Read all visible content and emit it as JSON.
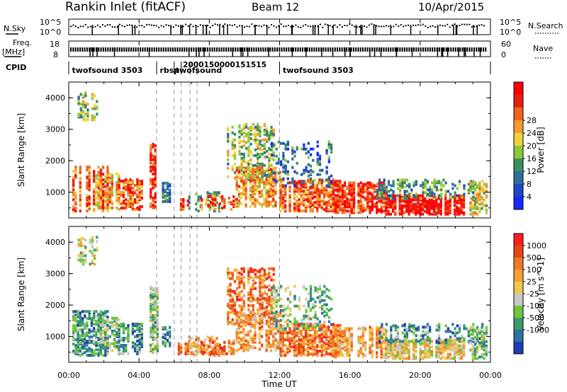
{
  "header": {
    "station": "Rankin Inlet (fitACF)",
    "beam": "Beam 12",
    "date": "10/Apr/2015"
  },
  "strip_labels": {
    "nsky": "N.Sky",
    "nsky_ticks": [
      "10^5",
      "10^0"
    ],
    "nsearch": "N.Search",
    "nsearch_ticks": [
      "10^5",
      "10^0"
    ],
    "freq": "Freq.",
    "freq_unit": "[MHz]",
    "freq_ticks": [
      "18",
      "8"
    ],
    "nave": "Nave",
    "nave_ticks": [
      "60",
      "0"
    ],
    "cpid": "CPID"
  },
  "cpid_labels": [
    {
      "text": "twofsound 3503",
      "t": 0.1
    },
    {
      "text": "rbsp",
      "t": 5.1
    },
    {
      "text": "twofsound",
      "t": 6.0
    },
    {
      "text": "twofsound 3503",
      "t": 12.1
    }
  ],
  "cpid_overlap_text": "2000150000151515",
  "mode_changes_ut": [
    5.0,
    6.0,
    6.4,
    6.9,
    7.3,
    12.0
  ],
  "chart_data": {
    "type": "heatmap",
    "xlabel": "Time UT",
    "x_range": [
      0,
      24
    ],
    "x_ticks": [
      "00:00",
      "04:00",
      "08:00",
      "12:00",
      "16:00",
      "20:00",
      "00:00"
    ],
    "ylabel": "Slant Range [km]",
    "y_range": [
      180,
      4500
    ],
    "y_ticks": [
      1000,
      2000,
      3000,
      4000
    ],
    "panels": [
      {
        "name": "Power",
        "colorbar_label": "Power [dB]",
        "colorbar_ticks": [
          "4",
          "8",
          "12",
          "16",
          "20",
          "24",
          "28"
        ],
        "colors": [
          "#1428ff",
          "#1e46c8",
          "#2e6e9a",
          "#3a8f5c",
          "#8cc83c",
          "#f0d23c",
          "#f59b32",
          "#f0641e",
          "#e61e14",
          "#ff0000"
        ]
      },
      {
        "name": "Velocity",
        "colorbar_label": "Velocity [m s^-1]",
        "colorbar_ticks": [
          "1000",
          "500",
          "100",
          "25",
          "-25",
          "-100",
          "-500",
          "-1000"
        ],
        "colors": [
          "#1e3cb4",
          "#2e73a0",
          "#3c9a6e",
          "#6ec83c",
          "#c8c8c8",
          "#f0c850",
          "#f5a032",
          "#f07828",
          "#e64614",
          "#ff1e1e"
        ]
      }
    ]
  }
}
